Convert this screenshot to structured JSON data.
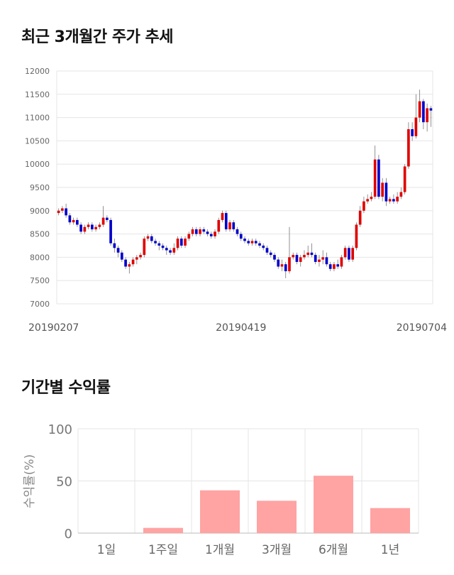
{
  "titles": {
    "price_trend": "최근 3개월간 주가 추세",
    "returns": "기간별 수익률"
  },
  "colors": {
    "up": "#e00000",
    "down": "#0000cc",
    "bar": "#ffa3a3",
    "grid": "#e5e5e5"
  },
  "chart_data": [
    {
      "type": "candlestick",
      "title": "최근 3개월간 주가 추세",
      "ylim": [
        7000,
        12000
      ],
      "yticks": [
        7000,
        7500,
        8000,
        8500,
        9000,
        9500,
        10000,
        10500,
        11000,
        11500,
        12000
      ],
      "xtick_labels": [
        {
          "index": 0,
          "label": "20190207"
        },
        {
          "index": 49,
          "label": "20190419"
        },
        {
          "index": 100,
          "label": "20190704"
        }
      ],
      "candles": [
        [
          8950,
          9000,
          8900,
          9050
        ],
        [
          9000,
          9050,
          8950,
          9100
        ],
        [
          9050,
          8900,
          8850,
          9150
        ],
        [
          8900,
          8750,
          8700,
          8950
        ],
        [
          8750,
          8800,
          8700,
          8850
        ],
        [
          8800,
          8700,
          8650,
          8850
        ],
        [
          8700,
          8550,
          8500,
          8750
        ],
        [
          8550,
          8650,
          8500,
          8700
        ],
        [
          8650,
          8700,
          8600,
          8750
        ],
        [
          8700,
          8600,
          8550,
          8750
        ],
        [
          8600,
          8650,
          8550,
          8700
        ],
        [
          8650,
          8700,
          8600,
          8750
        ],
        [
          8700,
          8850,
          8650,
          9100
        ],
        [
          8850,
          8800,
          8750,
          8900
        ],
        [
          8800,
          8300,
          8250,
          8850
        ],
        [
          8300,
          8200,
          8100,
          8400
        ],
        [
          8200,
          8100,
          8000,
          8250
        ],
        [
          8100,
          7950,
          7900,
          8150
        ],
        [
          7950,
          7800,
          7750,
          8000
        ],
        [
          7800,
          7850,
          7650,
          7900
        ],
        [
          7850,
          7950,
          7800,
          8000
        ],
        [
          7950,
          8000,
          7850,
          8050
        ],
        [
          8000,
          8050,
          7950,
          8100
        ],
        [
          8050,
          8400,
          8000,
          8450
        ],
        [
          8400,
          8450,
          8350,
          8500
        ],
        [
          8450,
          8350,
          8300,
          8500
        ],
        [
          8350,
          8300,
          8250,
          8400
        ],
        [
          8300,
          8250,
          8150,
          8350
        ],
        [
          8250,
          8200,
          8150,
          8300
        ],
        [
          8200,
          8150,
          8050,
          8250
        ],
        [
          8150,
          8100,
          8050,
          8200
        ],
        [
          8100,
          8200,
          8050,
          8300
        ],
        [
          8200,
          8400,
          8150,
          8450
        ],
        [
          8400,
          8250,
          8200,
          8450
        ],
        [
          8250,
          8400,
          8200,
          8450
        ],
        [
          8400,
          8500,
          8350,
          8550
        ],
        [
          8500,
          8600,
          8450,
          8650
        ],
        [
          8600,
          8500,
          8450,
          8650
        ],
        [
          8500,
          8600,
          8450,
          8650
        ],
        [
          8600,
          8550,
          8500,
          8650
        ],
        [
          8550,
          8500,
          8450,
          8600
        ],
        [
          8500,
          8450,
          8400,
          8550
        ],
        [
          8450,
          8550,
          8400,
          8600
        ],
        [
          8550,
          8800,
          8500,
          8850
        ],
        [
          8800,
          8950,
          8750,
          9000
        ],
        [
          8950,
          8600,
          8550,
          9000
        ],
        [
          8600,
          8750,
          8550,
          8800
        ],
        [
          8750,
          8600,
          8550,
          8800
        ],
        [
          8600,
          8500,
          8450,
          8650
        ],
        [
          8500,
          8400,
          8350,
          8550
        ],
        [
          8400,
          8350,
          8300,
          8450
        ],
        [
          8350,
          8300,
          8250,
          8400
        ],
        [
          8300,
          8350,
          8250,
          8400
        ],
        [
          8350,
          8300,
          8250,
          8400
        ],
        [
          8300,
          8250,
          8200,
          8350
        ],
        [
          8250,
          8200,
          8150,
          8300
        ],
        [
          8200,
          8100,
          8050,
          8250
        ],
        [
          8100,
          8050,
          8000,
          8150
        ],
        [
          8050,
          7950,
          7900,
          8100
        ],
        [
          7950,
          7800,
          7750,
          8000
        ],
        [
          7800,
          7850,
          7700,
          7950
        ],
        [
          7850,
          7700,
          7550,
          7900
        ],
        [
          7700,
          8000,
          7650,
          8650
        ],
        [
          8000,
          8050,
          7950,
          8100
        ],
        [
          8050,
          7900,
          7850,
          8100
        ],
        [
          7900,
          8000,
          7800,
          8050
        ],
        [
          8000,
          8050,
          7950,
          8150
        ],
        [
          8050,
          8100,
          8000,
          8250
        ],
        [
          8100,
          8050,
          8000,
          8300
        ],
        [
          8050,
          7900,
          7850,
          8100
        ],
        [
          7900,
          7950,
          7800,
          8050
        ],
        [
          7950,
          8000,
          7850,
          8150
        ],
        [
          8000,
          7850,
          7800,
          8100
        ],
        [
          7850,
          7750,
          7700,
          7900
        ],
        [
          7750,
          7850,
          7700,
          7900
        ],
        [
          7850,
          7800,
          7750,
          7950
        ],
        [
          7800,
          8000,
          7750,
          8050
        ],
        [
          8000,
          8200,
          7950,
          8250
        ],
        [
          8200,
          7950,
          7900,
          8250
        ],
        [
          7950,
          8200,
          7900,
          8250
        ],
        [
          8200,
          8700,
          8150,
          8750
        ],
        [
          8700,
          9000,
          8650,
          9100
        ],
        [
          9000,
          9200,
          8950,
          9300
        ],
        [
          9200,
          9250,
          9150,
          9350
        ],
        [
          9250,
          9300,
          9200,
          9400
        ],
        [
          9300,
          10100,
          9250,
          10400
        ],
        [
          10100,
          9300,
          9250,
          10200
        ],
        [
          9300,
          9600,
          9200,
          9700
        ],
        [
          9600,
          9200,
          9100,
          9700
        ],
        [
          9200,
          9250,
          9150,
          9300
        ],
        [
          9250,
          9200,
          9150,
          9350
        ],
        [
          9200,
          9300,
          9150,
          9400
        ],
        [
          9300,
          9400,
          9250,
          9500
        ],
        [
          9400,
          9950,
          9350,
          10000
        ],
        [
          9950,
          10750,
          9900,
          10900
        ],
        [
          10750,
          10600,
          10500,
          10900
        ],
        [
          10600,
          11000,
          10550,
          11500
        ],
        [
          11000,
          11350,
          10900,
          11600
        ],
        [
          11350,
          10900,
          10750,
          11400
        ],
        [
          10900,
          11200,
          10700,
          11300
        ],
        [
          11200,
          11150,
          10800,
          11250
        ]
      ]
    },
    {
      "type": "bar",
      "title": "기간별 수익률",
      "categories": [
        "1일",
        "1주일",
        "1개월",
        "3개월",
        "6개월",
        "1년"
      ],
      "values": [
        0,
        5,
        41,
        31,
        55,
        24
      ],
      "ylabel": "수익률(%)",
      "ylim": [
        0,
        100
      ],
      "yticks": [
        0,
        50,
        100
      ]
    }
  ]
}
